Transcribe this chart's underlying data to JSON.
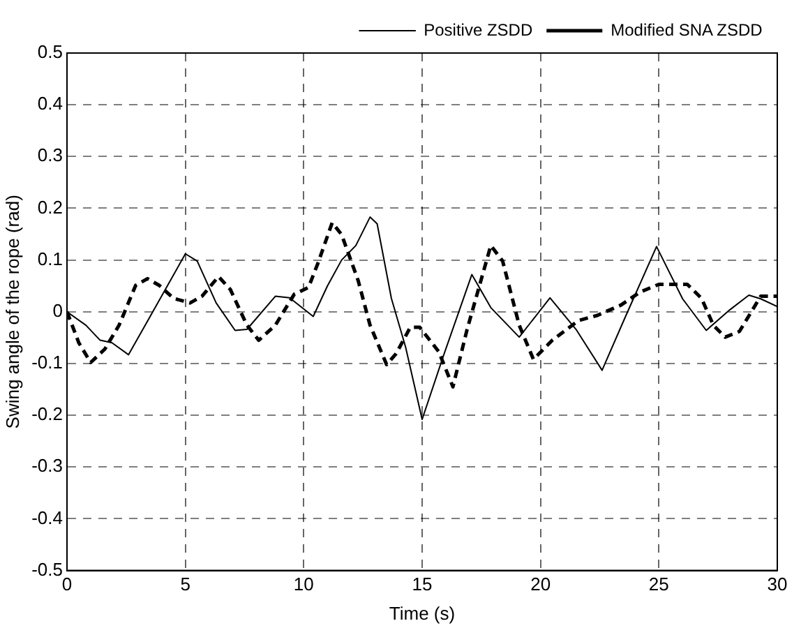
{
  "chart_data": {
    "type": "line",
    "xlabel": "Time (s)",
    "ylabel": "Swing angle of the rope (rad)",
    "xlim": [
      0,
      30
    ],
    "xticks": [
      0,
      5,
      10,
      15,
      20,
      25,
      30
    ],
    "ylim": [
      -0.5,
      0.5
    ],
    "yticks": [
      -0.5,
      -0.4,
      -0.3,
      -0.2,
      -0.1,
      0,
      0.1,
      0.2,
      0.3,
      0.4,
      0.5
    ],
    "grid": true,
    "legend": "top right",
    "marker": "none",
    "series": [
      {
        "name": "Positive ZSDD",
        "color": "#000000",
        "line_style": "solid",
        "x": [
          0,
          0.8,
          1.4,
          1.9,
          2.6,
          3.5,
          4.3,
          5,
          5.5,
          6.3,
          7.1,
          7.6,
          8.8,
          9.4,
          10.4,
          11,
          11.6,
          12.2,
          12.8,
          13.1,
          13.7,
          14.3,
          15,
          15.9,
          17.1,
          17.9,
          19.1,
          20.4,
          21.5,
          22.6,
          23.6,
          24.9,
          26,
          27,
          28,
          28.8,
          29.3,
          30
        ],
        "values": [
          0,
          -0.026,
          -0.055,
          -0.06,
          -0.083,
          -0.01,
          0.055,
          0.112,
          0.098,
          0.017,
          -0.036,
          -0.034,
          0.03,
          0.027,
          -0.009,
          0.05,
          0.1,
          0.128,
          0.183,
          0.17,
          0.026,
          -0.068,
          -0.208,
          -0.085,
          0.072,
          0.008,
          -0.049,
          0.027,
          -0.034,
          -0.113,
          -0.008,
          0.126,
          0.025,
          -0.036,
          0.004,
          0.032,
          0.025,
          0.01
        ]
      },
      {
        "name": "Modified SNA ZSDD",
        "color": "#000000",
        "line_style": "dashed",
        "x": [
          0,
          0.5,
          1,
          1.6,
          2.2,
          2.9,
          3.4,
          3.9,
          4.5,
          5.2,
          5.7,
          6.4,
          6.9,
          7.6,
          8.1,
          8.8,
          9.6,
          10.2,
          10.6,
          11.2,
          11.6,
          12.3,
          12.8,
          13.5,
          13.9,
          14.5,
          14.9,
          15.7,
          16.3,
          16.9,
          17.9,
          18.4,
          19.1,
          19.7,
          20.5,
          21.6,
          22.4,
          23.4,
          24.2,
          25,
          26.2,
          26.8,
          27.3,
          27.8,
          28.4,
          29.3,
          30
        ],
        "values": [
          0,
          -0.06,
          -0.098,
          -0.072,
          -0.026,
          0.051,
          0.064,
          0.051,
          0.026,
          0.017,
          0.03,
          0.068,
          0.043,
          -0.026,
          -0.055,
          -0.026,
          0.034,
          0.047,
          0.094,
          0.172,
          0.149,
          0.06,
          -0.026,
          -0.102,
          -0.081,
          -0.03,
          -0.03,
          -0.077,
          -0.145,
          -0.034,
          0.128,
          0.098,
          -0.026,
          -0.092,
          -0.055,
          -0.017,
          -0.007,
          0.013,
          0.038,
          0.053,
          0.053,
          0.026,
          -0.026,
          -0.049,
          -0.038,
          0.03,
          0.03
        ]
      }
    ]
  }
}
